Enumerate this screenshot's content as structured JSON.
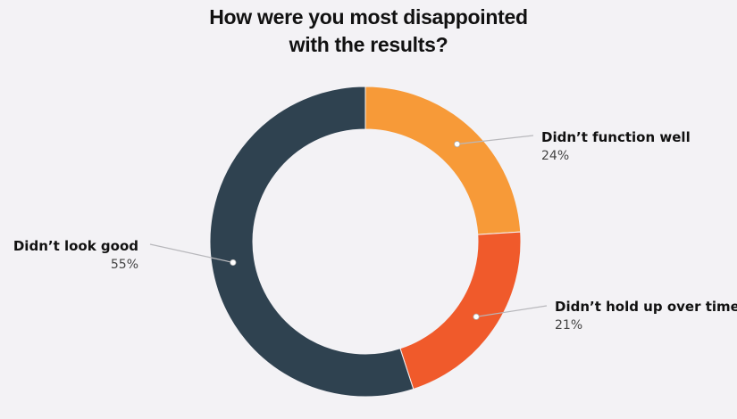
{
  "chart_data": {
    "type": "pie",
    "subtype": "donut",
    "title_lines": [
      "How were you most disappointed",
      "with the results?"
    ],
    "slices": [
      {
        "label": "Didn’t function well",
        "value": 24,
        "display": "24%",
        "color": "#f79a38"
      },
      {
        "label": "Didn’t hold up over time",
        "value": 21,
        "display": "21%",
        "color": "#f05a2b"
      },
      {
        "label": "Didn’t look good",
        "value": 55,
        "display": "55%",
        "color": "#2f4250"
      }
    ],
    "start_angle": "12 o'clock",
    "direction": "clockwise"
  }
}
